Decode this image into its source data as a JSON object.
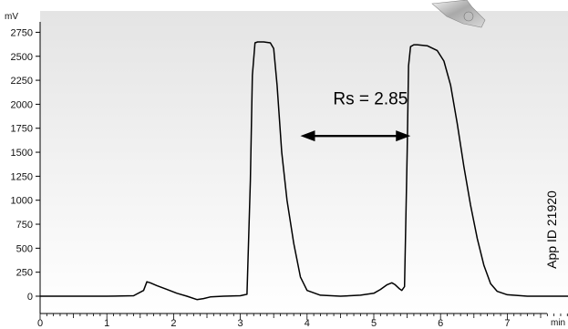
{
  "chart_data": {
    "type": "line",
    "title": "",
    "xlabel": "min",
    "ylabel": "mV",
    "xlim": [
      0,
      8
    ],
    "ylim": [
      -80,
      2780
    ],
    "x_ticks": [
      0,
      1,
      2,
      3,
      4,
      5,
      6,
      7
    ],
    "y_ticks": [
      0,
      250,
      500,
      750,
      1000,
      1250,
      1500,
      1750,
      2000,
      2250,
      2500,
      2750
    ],
    "grid": false,
    "background": [
      "#e4e4e4",
      "#ffffff"
    ],
    "line_color": "#000000",
    "series": [
      {
        "x": [
          0,
          0.5,
          1.0,
          1.4,
          1.55,
          1.6,
          1.65,
          1.75,
          1.9,
          2.05,
          2.2,
          2.35,
          2.45,
          2.55,
          2.75,
          3.0,
          3.1,
          3.15,
          3.18,
          3.22,
          3.26,
          3.3,
          3.35,
          3.45,
          3.5,
          3.55,
          3.62,
          3.7,
          3.8,
          3.9,
          4.0,
          4.2,
          4.5,
          4.8,
          5.0,
          5.1,
          5.2,
          5.27,
          5.32,
          5.38,
          5.42,
          5.46,
          5.5,
          5.52,
          5.55,
          5.6,
          5.65,
          5.8,
          5.95,
          6.05,
          6.15,
          6.25,
          6.35,
          6.45,
          6.55,
          6.65,
          6.75,
          6.85,
          7.0,
          7.3,
          7.6,
          7.95
        ],
        "y": [
          0,
          0,
          0,
          5,
          60,
          150,
          140,
          110,
          70,
          30,
          0,
          -35,
          -25,
          -8,
          0,
          5,
          20,
          1200,
          2300,
          2640,
          2650,
          2650,
          2650,
          2640,
          2580,
          2200,
          1500,
          1000,
          550,
          200,
          60,
          10,
          0,
          10,
          30,
          70,
          120,
          140,
          120,
          80,
          60,
          100,
          1500,
          2400,
          2600,
          2620,
          2620,
          2610,
          2560,
          2450,
          2200,
          1800,
          1350,
          950,
          600,
          320,
          130,
          50,
          15,
          0,
          0,
          0
        ]
      }
    ],
    "annotations": [
      {
        "text": "Rs = 2.85",
        "type": "text",
        "x": 4.95,
        "y": 2000
      },
      {
        "type": "double-arrow",
        "x1": 3.9,
        "x2": 5.55,
        "y": 1670
      }
    ]
  },
  "side_label": "App ID 21920"
}
